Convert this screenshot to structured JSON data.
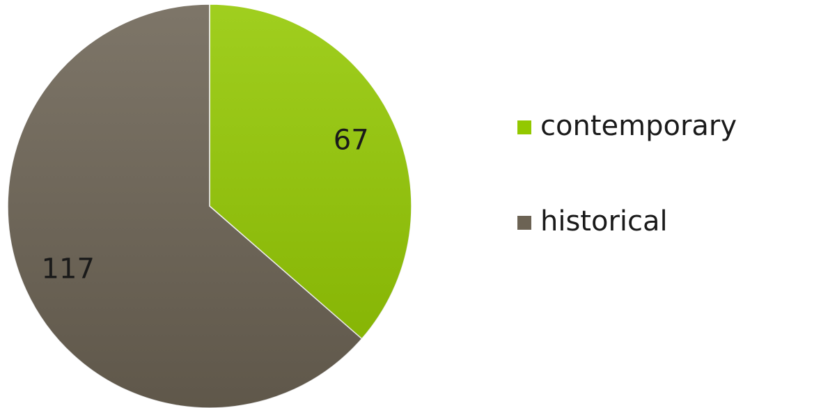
{
  "chart_data": {
    "type": "pie",
    "categories": [
      "contemporary",
      "historical"
    ],
    "values": [
      67,
      117
    ],
    "colors": [
      "#93c800",
      "#6c6354"
    ],
    "legend": "right"
  }
}
